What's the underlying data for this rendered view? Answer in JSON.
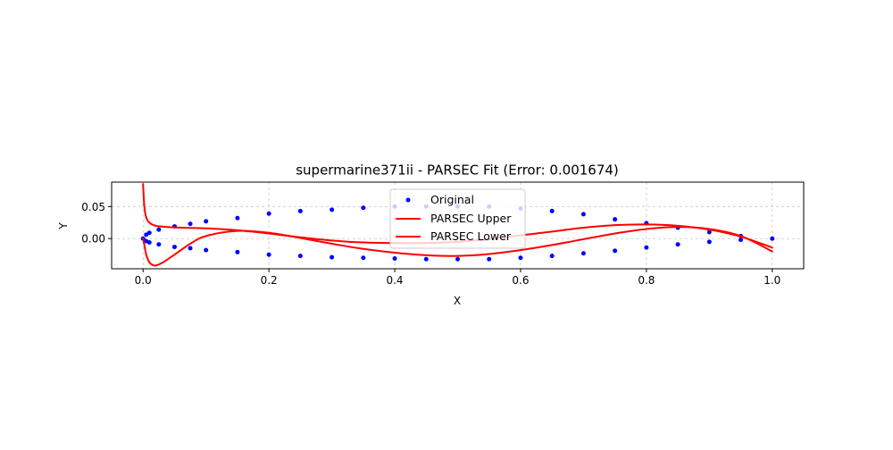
{
  "chart_data": {
    "type": "scatter",
    "title": "supermarine371ii - PARSEC Fit (Error: 0.001674)",
    "xlabel": "X",
    "ylabel": "Y",
    "xlim": [
      -0.05,
      1.05
    ],
    "ylim": [
      -0.047,
      0.088
    ],
    "xticks": [
      0.0,
      0.2,
      0.4,
      0.6,
      0.8,
      1.0
    ],
    "xtick_labels": [
      "0.0",
      "0.2",
      "0.4",
      "0.6",
      "0.8",
      "1.0"
    ],
    "yticks": [
      0.0,
      0.05
    ],
    "ytick_labels": [
      "0.00",
      "0.05"
    ],
    "grid": true,
    "legend_position": "upper center",
    "series": [
      {
        "name": "Original",
        "kind": "scatter",
        "color": "#0000ff",
        "points": [
          [
            0.0,
            0.0
          ],
          [
            0.005,
            0.006
          ],
          [
            0.01,
            0.009
          ],
          [
            0.025,
            0.014
          ],
          [
            0.05,
            0.019
          ],
          [
            0.075,
            0.023
          ],
          [
            0.1,
            0.027
          ],
          [
            0.15,
            0.032
          ],
          [
            0.2,
            0.039
          ],
          [
            0.25,
            0.043
          ],
          [
            0.3,
            0.045
          ],
          [
            0.35,
            0.048
          ],
          [
            0.4,
            0.05
          ],
          [
            0.45,
            0.05
          ],
          [
            0.5,
            0.05
          ],
          [
            0.55,
            0.05
          ],
          [
            0.6,
            0.047
          ],
          [
            0.65,
            0.043
          ],
          [
            0.7,
            0.038
          ],
          [
            0.75,
            0.03
          ],
          [
            0.8,
            0.024
          ],
          [
            0.85,
            0.017
          ],
          [
            0.9,
            0.01
          ],
          [
            0.95,
            0.004
          ],
          [
            1.0,
            0.0
          ],
          [
            0.005,
            -0.004
          ],
          [
            0.01,
            -0.006
          ],
          [
            0.025,
            -0.009
          ],
          [
            0.05,
            -0.013
          ],
          [
            0.075,
            -0.015
          ],
          [
            0.1,
            -0.018
          ],
          [
            0.15,
            -0.021
          ],
          [
            0.2,
            -0.025
          ],
          [
            0.25,
            -0.027
          ],
          [
            0.3,
            -0.029
          ],
          [
            0.35,
            -0.03
          ],
          [
            0.4,
            -0.031
          ],
          [
            0.45,
            -0.032
          ],
          [
            0.5,
            -0.032
          ],
          [
            0.55,
            -0.032
          ],
          [
            0.6,
            -0.03
          ],
          [
            0.65,
            -0.027
          ],
          [
            0.7,
            -0.023
          ],
          [
            0.75,
            -0.019
          ],
          [
            0.8,
            -0.014
          ],
          [
            0.85,
            -0.009
          ],
          [
            0.9,
            -0.005
          ],
          [
            0.95,
            -0.002
          ]
        ]
      },
      {
        "name": "PARSEC Upper",
        "kind": "line",
        "color": "#ff0000",
        "x": [
          0.0,
          0.002,
          0.005,
          0.01,
          0.02,
          0.04,
          0.06,
          0.1,
          0.15,
          0.2,
          0.25,
          0.3,
          0.35,
          0.4,
          0.45,
          0.5,
          0.55,
          0.6,
          0.65,
          0.7,
          0.75,
          0.8,
          0.85,
          0.9,
          0.95,
          1.0
        ],
        "y": [
          0.085,
          0.05,
          0.033,
          0.025,
          0.02,
          0.018,
          0.017,
          0.016,
          0.013,
          0.008,
          0.002,
          -0.003,
          -0.006,
          -0.007,
          -0.007,
          -0.005,
          -0.001,
          0.005,
          0.011,
          0.017,
          0.021,
          0.022,
          0.02,
          0.014,
          0.003,
          -0.014
        ]
      },
      {
        "name": "PARSEC Lower",
        "kind": "line",
        "color": "#ff0000",
        "x": [
          0.0,
          0.002,
          0.005,
          0.01,
          0.015,
          0.02,
          0.03,
          0.05,
          0.075,
          0.1,
          0.15,
          0.2,
          0.25,
          0.3,
          0.35,
          0.4,
          0.45,
          0.5,
          0.55,
          0.6,
          0.65,
          0.7,
          0.75,
          0.8,
          0.85,
          0.9,
          0.95,
          1.0
        ],
        "y": [
          0.0,
          -0.01,
          -0.025,
          -0.037,
          -0.041,
          -0.042,
          -0.038,
          -0.025,
          -0.008,
          0.004,
          0.012,
          0.009,
          0.001,
          -0.008,
          -0.016,
          -0.022,
          -0.026,
          -0.027,
          -0.024,
          -0.018,
          -0.01,
          -0.001,
          0.008,
          0.015,
          0.018,
          0.015,
          0.004,
          -0.02
        ]
      }
    ]
  }
}
